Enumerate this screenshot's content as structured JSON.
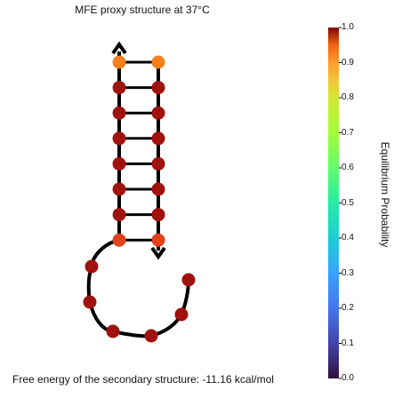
{
  "title": "MFE proxy structure at 37°C",
  "footer": "Free energy of the secondary structure: -11.16 kcal/mol",
  "colorbar": {
    "label": "Equilibrium Probability",
    "ticks": [
      "0.0",
      "0.1",
      "0.2",
      "0.3",
      "0.4",
      "0.5",
      "0.6",
      "0.7",
      "0.8",
      "0.9",
      "1.0"
    ],
    "colormap": "turbo"
  },
  "colors": {
    "high_prob": "#a0120e",
    "mid_prob": "#e0421a",
    "terminal_pair": "#f57f1d",
    "backbone": "#000000"
  },
  "structure": {
    "base_pairs": 8,
    "hairpin_loop_nucleotides": 7,
    "pair_probabilities": [
      0.86,
      0.99,
      0.99,
      0.99,
      0.99,
      0.99,
      0.99,
      0.99
    ],
    "loop_probabilities": [
      0.99,
      0.99,
      0.99,
      0.99,
      0.99,
      0.99,
      0.99
    ]
  }
}
